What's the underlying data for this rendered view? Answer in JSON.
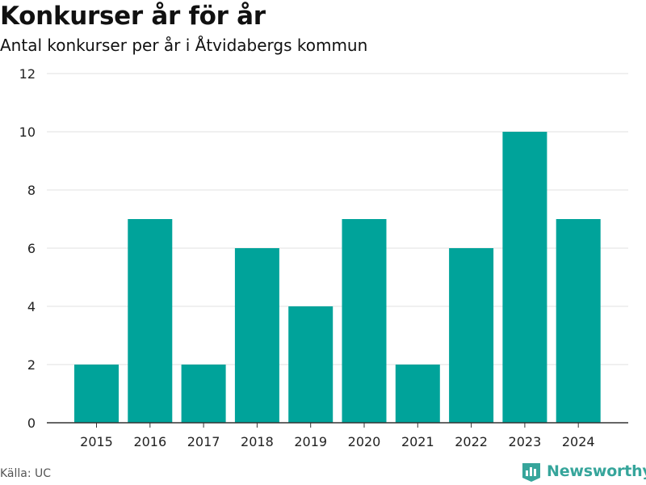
{
  "header": {
    "title": "Konkurser år för år",
    "subtitle": "Antal konkurser per år i Åtvidabergs kommun"
  },
  "footer": {
    "source": "Källa: UC",
    "brand": "Newsworthy",
    "brand_icon": "newsworthy-logo-icon",
    "brand_color": "#36a59b"
  },
  "chart_data": {
    "type": "bar",
    "title": "Konkurser år för år",
    "subtitle": "Antal konkurser per år i Åtvidabergs kommun",
    "xlabel": "",
    "ylabel": "",
    "categories": [
      "2015",
      "2016",
      "2017",
      "2018",
      "2019",
      "2020",
      "2021",
      "2022",
      "2023",
      "2024"
    ],
    "values": [
      2,
      7,
      2,
      6,
      4,
      7,
      2,
      6,
      10,
      7
    ],
    "ylim": [
      0,
      12
    ],
    "yticks": [
      0,
      2,
      4,
      6,
      8,
      10,
      12
    ],
    "grid": true,
    "legend": "none",
    "bar_color": "#00a39a"
  }
}
